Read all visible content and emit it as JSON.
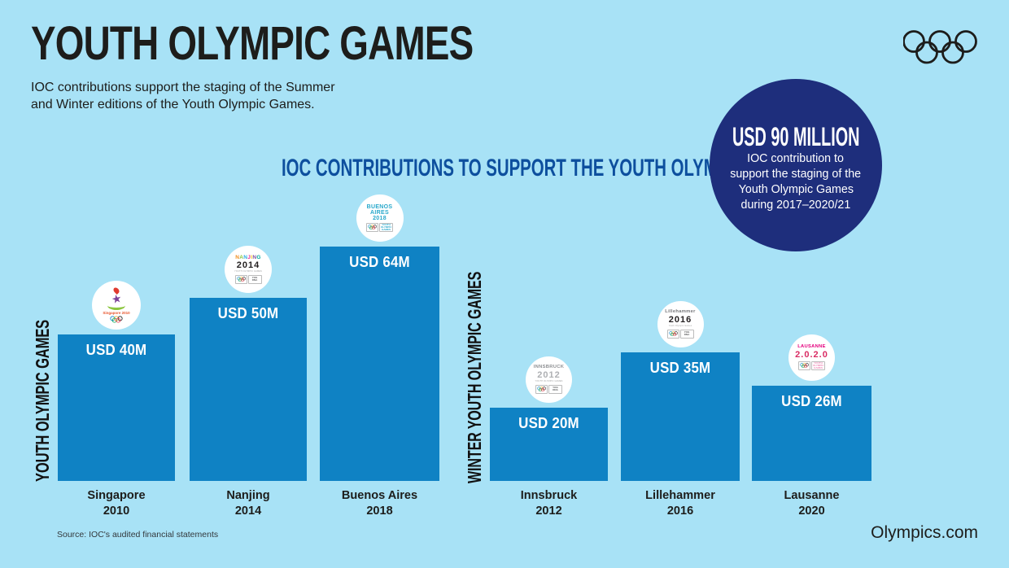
{
  "page": {
    "title": "YOUTH OLYMPIC GAMES",
    "subtitle_line1": "IOC contributions support the staging of the Summer",
    "subtitle_line2": "and Winter editions of the Youth Olympic Games.",
    "source": "Source: IOC's audited financial statements",
    "footer_brand": "Olympics.com"
  },
  "highlight": {
    "headline": "USD 90 MILLION",
    "line1": "IOC contribution to",
    "line2": "support the staging of the",
    "line3": "Youth Olympic Games",
    "line4": "during 2017–2020/21",
    "circle_color": "#1e2e7c"
  },
  "icons": {
    "olympic_rings": "olympic-rings-icon",
    "ring_colors": [
      "#0081c8",
      "#fcb131",
      "#1d1d1b",
      "#00a651",
      "#ee334e"
    ]
  },
  "chart_data": {
    "type": "bar",
    "title": "IOC CONTRIBUTIONS TO SUPPORT THE YOUTH OLYMPIC GAMES",
    "unit": "USD million",
    "ylim": [
      0,
      64
    ],
    "grid": false,
    "legend": false,
    "bar_color": "#0f82c4",
    "value_label_color": "#ffffff",
    "groups": [
      {
        "label": "YOUTH OLYMPIC GAMES",
        "bars": [
          {
            "city": "Singapore",
            "year": "2010",
            "value": 40,
            "value_label": "USD 40M",
            "logo": {
              "id": "singapore-2010",
              "type": "graphic",
              "caption": "Singapore 2010",
              "caption_color": "#e8542c",
              "rings": "colored"
            }
          },
          {
            "city": "Nanjing",
            "year": "2014",
            "value": 50,
            "value_label": "USD 50M",
            "logo": {
              "id": "nanjing-2014",
              "name": "NANJING",
              "name_letter_colors": [
                "#f08c1e",
                "#8cc63f",
                "#29abe2",
                "#ec268f",
                "#f7d117",
                "#7f4fa0",
                "#00a99d"
              ],
              "year": "2014",
              "year_color": "#231f20",
              "sub": "YOUTH OLYMPIC GAMES",
              "badge": "YOG DNA",
              "badge_color": "#58595b",
              "rings": "colored"
            }
          },
          {
            "city": "Buenos Aires",
            "year": "2018",
            "value": 64,
            "value_label": "USD 64M",
            "logo": {
              "id": "buenos-aires-2018",
              "name_lines": [
                "BUENOS",
                "AIRES",
                "2018"
              ],
              "name_color": "#28a8cb",
              "badge": "YOUTH OLYMPIC GAMES",
              "badge_color": "#28a8cb",
              "rings": "colored"
            }
          }
        ]
      },
      {
        "label": "WINTER YOUTH OLYMPIC GAMES",
        "bars": [
          {
            "city": "Innsbruck",
            "year": "2012",
            "value": 20,
            "value_label": "USD 20M",
            "logo": {
              "id": "innsbruck-2012",
              "name": "INNSBRUCK",
              "name_color": "#8e9093",
              "year": "2012",
              "year_color": "#aeb0b3",
              "sub": "YOUTH OLYMPIC GAMES",
              "badge": "YOG DNA",
              "badge_color": "#58595b",
              "rings": "colored"
            }
          },
          {
            "city": "Lillehammer",
            "year": "2016",
            "value": 35,
            "value_label": "USD 35M",
            "logo": {
              "id": "lillehammer-2016",
              "name": "Lillehammer",
              "name_color": "#77787b",
              "year": "2016",
              "year_color": "#231f20",
              "sub": "Youth Olympic Games",
              "badge": "YOG DNA",
              "badge_color": "#58595b",
              "rings": "colored"
            }
          },
          {
            "city": "Lausanne",
            "year": "2020",
            "value": 26,
            "value_label": "USD 26M",
            "logo": {
              "id": "lausanne-2020",
              "name": "LAUSANNE",
              "name_color": "#e5007e",
              "year": "2.0.2.0",
              "year_color": "#d92b63",
              "badge": "YOUTH OLYMPIC GAMES",
              "badge_color": "#ef8bb8",
              "rings": "colored"
            }
          }
        ]
      }
    ]
  }
}
